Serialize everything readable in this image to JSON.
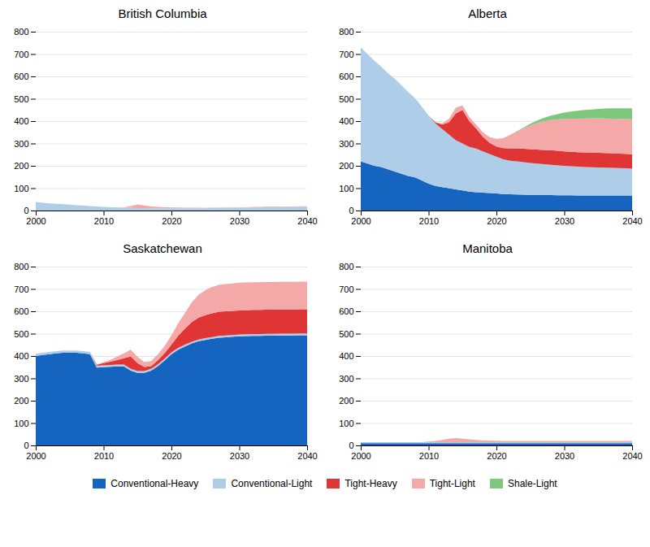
{
  "chart_data": [
    {
      "type": "area",
      "title": "British Columbia",
      "stacked": true,
      "grid": true,
      "legend": "lower center",
      "x": [
        2000,
        2001,
        2002,
        2003,
        2004,
        2005,
        2006,
        2007,
        2008,
        2009,
        2010,
        2011,
        2012,
        2013,
        2014,
        2015,
        2016,
        2017,
        2018,
        2019,
        2020,
        2021,
        2022,
        2023,
        2024,
        2025,
        2026,
        2027,
        2028,
        2029,
        2030,
        2031,
        2032,
        2033,
        2034,
        2035,
        2036,
        2037,
        2038,
        2039,
        2040
      ],
      "xlim": [
        2000,
        2040
      ],
      "xticks": [
        2000,
        2010,
        2020,
        2030,
        2040
      ],
      "ylim": [
        0,
        800
      ],
      "yticks": [
        0,
        100,
        200,
        300,
        400,
        500,
        600,
        700,
        800
      ],
      "series": [
        {
          "name": "Conventional-Heavy",
          "color": "#1565c0",
          "values": [
            0,
            0,
            0,
            0,
            0,
            0,
            0,
            0,
            0,
            0,
            0,
            0,
            0,
            0,
            0,
            0,
            0,
            0,
            0,
            0,
            0,
            0,
            0,
            0,
            0,
            0,
            0,
            0,
            0,
            0,
            0,
            0,
            0,
            0,
            0,
            0,
            0,
            0,
            0,
            0,
            0
          ]
        },
        {
          "name": "Conventional-Light",
          "color": "#aecde8",
          "values": [
            38,
            35,
            32,
            30,
            28,
            26,
            24,
            22,
            20,
            18,
            16,
            15,
            14,
            13,
            12,
            11,
            11,
            10,
            10,
            10,
            10,
            10,
            10,
            10,
            10,
            10,
            11,
            11,
            12,
            12,
            13,
            13,
            14,
            14,
            15,
            15,
            15,
            16,
            16,
            17,
            17
          ]
        },
        {
          "name": "Tight-Heavy",
          "color": "#e03535",
          "values": [
            0,
            0,
            0,
            0,
            0,
            0,
            0,
            0,
            0,
            0,
            0,
            0,
            0,
            0,
            0,
            0,
            0,
            0,
            0,
            0,
            0,
            0,
            0,
            0,
            0,
            0,
            0,
            0,
            0,
            0,
            0,
            0,
            0,
            0,
            0,
            0,
            0,
            0,
            0,
            0,
            0
          ]
        },
        {
          "name": "Tight-Light",
          "color": "#f4a8a8",
          "values": [
            0,
            0,
            0,
            0,
            0,
            0,
            0,
            0,
            0,
            0,
            0,
            0,
            0,
            2,
            8,
            15,
            12,
            8,
            6,
            5,
            4,
            4,
            3,
            3,
            3,
            2,
            2,
            2,
            2,
            2,
            2,
            2,
            2,
            2,
            2,
            2,
            2,
            2,
            2,
            2,
            2
          ]
        },
        {
          "name": "Shale-Light",
          "color": "#7ec87e",
          "values": [
            0,
            0,
            0,
            0,
            0,
            0,
            0,
            0,
            0,
            0,
            0,
            0,
            0,
            0,
            0,
            0,
            0,
            0,
            0,
            0,
            0,
            0,
            0,
            0,
            0,
            0,
            0,
            0,
            0,
            0,
            0,
            0,
            0,
            0,
            0,
            0,
            0,
            0,
            0,
            0,
            0
          ]
        }
      ]
    },
    {
      "type": "area",
      "title": "Alberta",
      "stacked": true,
      "grid": true,
      "legend": "lower center",
      "x": [
        2000,
        2001,
        2002,
        2003,
        2004,
        2005,
        2006,
        2007,
        2008,
        2009,
        2010,
        2011,
        2012,
        2013,
        2014,
        2015,
        2016,
        2017,
        2018,
        2019,
        2020,
        2021,
        2022,
        2023,
        2024,
        2025,
        2026,
        2027,
        2028,
        2029,
        2030,
        2031,
        2032,
        2033,
        2034,
        2035,
        2036,
        2037,
        2038,
        2039,
        2040
      ],
      "xlim": [
        2000,
        2040
      ],
      "xticks": [
        2000,
        2010,
        2020,
        2030,
        2040
      ],
      "ylim": [
        0,
        800
      ],
      "yticks": [
        0,
        100,
        200,
        300,
        400,
        500,
        600,
        700,
        800
      ],
      "series": [
        {
          "name": "Conventional-Heavy",
          "color": "#1565c0",
          "values": [
            220,
            210,
            200,
            195,
            185,
            175,
            165,
            155,
            148,
            135,
            120,
            110,
            105,
            100,
            95,
            90,
            85,
            82,
            80,
            78,
            76,
            74,
            73,
            72,
            71,
            70,
            70,
            69,
            69,
            68,
            68,
            68,
            67,
            67,
            67,
            67,
            67,
            67,
            67,
            67,
            67
          ]
        },
        {
          "name": "Conventional-Light",
          "color": "#aecde8",
          "values": [
            510,
            490,
            470,
            450,
            430,
            415,
            395,
            375,
            355,
            330,
            305,
            280,
            260,
            240,
            220,
            210,
            200,
            195,
            185,
            175,
            165,
            155,
            150,
            148,
            145,
            143,
            140,
            138,
            136,
            134,
            132,
            130,
            129,
            128,
            127,
            126,
            125,
            124,
            123,
            122,
            120
          ]
        },
        {
          "name": "Tight-Heavy",
          "color": "#e03535",
          "values": [
            0,
            0,
            0,
            0,
            0,
            0,
            0,
            0,
            0,
            0,
            0,
            5,
            20,
            55,
            120,
            150,
            115,
            90,
            65,
            50,
            45,
            50,
            55,
            58,
            60,
            62,
            63,
            64,
            65,
            65,
            65,
            65,
            65,
            65,
            65,
            65,
            65,
            65,
            65,
            65,
            65
          ]
        },
        {
          "name": "Tight-Light",
          "color": "#f4a8a8",
          "values": [
            0,
            0,
            0,
            0,
            0,
            0,
            0,
            0,
            0,
            0,
            0,
            0,
            5,
            15,
            25,
            20,
            18,
            18,
            20,
            25,
            35,
            45,
            60,
            75,
            90,
            105,
            118,
            128,
            135,
            140,
            145,
            148,
            150,
            152,
            153,
            155,
            155,
            155,
            155,
            155,
            155
          ]
        },
        {
          "name": "Shale-Light",
          "color": "#7ec87e",
          "values": [
            0,
            0,
            0,
            0,
            0,
            0,
            0,
            0,
            0,
            0,
            0,
            0,
            0,
            0,
            0,
            0,
            0,
            0,
            0,
            0,
            0,
            0,
            0,
            2,
            5,
            8,
            12,
            16,
            20,
            24,
            28,
            32,
            35,
            38,
            40,
            42,
            44,
            46,
            47,
            48,
            50
          ]
        }
      ]
    },
    {
      "type": "area",
      "title": "Saskatchewan",
      "stacked": true,
      "grid": true,
      "legend": "lower center",
      "x": [
        2000,
        2001,
        2002,
        2003,
        2004,
        2005,
        2006,
        2007,
        2008,
        2009,
        2010,
        2011,
        2012,
        2013,
        2014,
        2015,
        2016,
        2017,
        2018,
        2019,
        2020,
        2021,
        2022,
        2023,
        2024,
        2025,
        2026,
        2027,
        2028,
        2029,
        2030,
        2031,
        2032,
        2033,
        2034,
        2035,
        2036,
        2037,
        2038,
        2039,
        2040
      ],
      "xlim": [
        2000,
        2040
      ],
      "xticks": [
        2000,
        2010,
        2020,
        2030,
        2040
      ],
      "ylim": [
        0,
        800
      ],
      "yticks": [
        0,
        100,
        200,
        300,
        400,
        500,
        600,
        700,
        800
      ],
      "series": [
        {
          "name": "Conventional-Heavy",
          "color": "#1565c0",
          "values": [
            400,
            405,
            408,
            412,
            415,
            415,
            415,
            412,
            408,
            348,
            350,
            352,
            354,
            354,
            335,
            325,
            325,
            335,
            355,
            380,
            408,
            428,
            443,
            456,
            466,
            472,
            477,
            482,
            484,
            486,
            488,
            489,
            490,
            490,
            491,
            491,
            492,
            492,
            492,
            493,
            493
          ]
        },
        {
          "name": "Conventional-Light",
          "color": "#aecde8",
          "values": [
            10,
            10,
            10,
            10,
            10,
            10,
            10,
            10,
            10,
            8,
            8,
            8,
            8,
            8,
            8,
            8,
            8,
            8,
            8,
            8,
            8,
            8,
            8,
            8,
            8,
            8,
            8,
            8,
            8,
            8,
            8,
            8,
            8,
            8,
            8,
            8,
            8,
            8,
            8,
            8,
            8
          ]
        },
        {
          "name": "Tight-Heavy",
          "color": "#e03535",
          "values": [
            0,
            0,
            0,
            0,
            0,
            0,
            0,
            0,
            0,
            5,
            10,
            15,
            20,
            28,
            55,
            35,
            18,
            12,
            18,
            25,
            35,
            55,
            72,
            88,
            98,
            103,
            106,
            108,
            108,
            108,
            108,
            108,
            108,
            108,
            108,
            108,
            108,
            108,
            108,
            108,
            108
          ]
        },
        {
          "name": "Tight-Light",
          "color": "#f4a8a8",
          "values": [
            0,
            0,
            0,
            0,
            0,
            0,
            0,
            0,
            0,
            2,
            4,
            8,
            15,
            22,
            30,
            28,
            22,
            22,
            26,
            32,
            42,
            55,
            70,
            88,
            102,
            112,
            118,
            120,
            122,
            123,
            124,
            124,
            124,
            124,
            124,
            124,
            124,
            124,
            124,
            124,
            124
          ]
        },
        {
          "name": "Shale-Light",
          "color": "#7ec87e",
          "values": [
            0,
            0,
            0,
            0,
            0,
            0,
            0,
            0,
            0,
            0,
            0,
            0,
            0,
            0,
            0,
            0,
            0,
            0,
            0,
            0,
            0,
            0,
            0,
            0,
            0,
            0,
            0,
            0,
            0,
            0,
            0,
            0,
            0,
            0,
            0,
            0,
            0,
            0,
            0,
            0,
            0
          ]
        }
      ]
    },
    {
      "type": "area",
      "title": "Manitoba",
      "stacked": true,
      "grid": true,
      "legend": "lower center",
      "x": [
        2000,
        2001,
        2002,
        2003,
        2004,
        2005,
        2006,
        2007,
        2008,
        2009,
        2010,
        2011,
        2012,
        2013,
        2014,
        2015,
        2016,
        2017,
        2018,
        2019,
        2020,
        2021,
        2022,
        2023,
        2024,
        2025,
        2026,
        2027,
        2028,
        2029,
        2030,
        2031,
        2032,
        2033,
        2034,
        2035,
        2036,
        2037,
        2038,
        2039,
        2040
      ],
      "xlim": [
        2000,
        2040
      ],
      "xticks": [
        2000,
        2010,
        2020,
        2030,
        2040
      ],
      "ylim": [
        0,
        800
      ],
      "yticks": [
        0,
        100,
        200,
        300,
        400,
        500,
        600,
        700,
        800
      ],
      "series": [
        {
          "name": "Conventional-Heavy",
          "color": "#1565c0",
          "values": [
            10,
            10,
            10,
            10,
            10,
            10,
            10,
            10,
            10,
            10,
            10,
            10,
            10,
            10,
            10,
            10,
            10,
            10,
            10,
            10,
            10,
            10,
            10,
            10,
            10,
            10,
            10,
            10,
            10,
            10,
            10,
            10,
            10,
            10,
            10,
            10,
            10,
            10,
            10,
            10,
            10
          ]
        },
        {
          "name": "Conventional-Light",
          "color": "#aecde8",
          "values": [
            5,
            5,
            5,
            5,
            5,
            5,
            5,
            5,
            5,
            5,
            5,
            5,
            5,
            5,
            5,
            5,
            5,
            5,
            5,
            5,
            5,
            5,
            5,
            5,
            5,
            5,
            5,
            5,
            5,
            5,
            5,
            5,
            5,
            5,
            5,
            5,
            5,
            5,
            5,
            5,
            5
          ]
        },
        {
          "name": "Tight-Heavy",
          "color": "#e03535",
          "values": [
            0,
            0,
            0,
            0,
            0,
            0,
            0,
            0,
            0,
            0,
            0,
            0,
            0,
            0,
            0,
            0,
            0,
            0,
            0,
            0,
            0,
            0,
            0,
            0,
            0,
            0,
            0,
            0,
            0,
            0,
            0,
            0,
            0,
            0,
            0,
            0,
            0,
            0,
            0,
            0,
            0
          ]
        },
        {
          "name": "Tight-Light",
          "color": "#f4a8a8",
          "values": [
            0,
            0,
            0,
            0,
            0,
            0,
            0,
            0,
            0,
            0,
            2,
            5,
            10,
            15,
            18,
            15,
            12,
            10,
            8,
            7,
            6,
            5,
            5,
            5,
            5,
            5,
            5,
            5,
            5,
            5,
            5,
            5,
            5,
            5,
            5,
            5,
            5,
            5,
            5,
            5,
            5
          ]
        },
        {
          "name": "Shale-Light",
          "color": "#7ec87e",
          "values": [
            0,
            0,
            0,
            0,
            0,
            0,
            0,
            0,
            0,
            0,
            0,
            0,
            0,
            0,
            0,
            0,
            0,
            0,
            0,
            0,
            0,
            0,
            0,
            0,
            0,
            0,
            0,
            0,
            0,
            0,
            0,
            0,
            0,
            0,
            0,
            0,
            0,
            0,
            0,
            0,
            0
          ]
        }
      ]
    }
  ]
}
